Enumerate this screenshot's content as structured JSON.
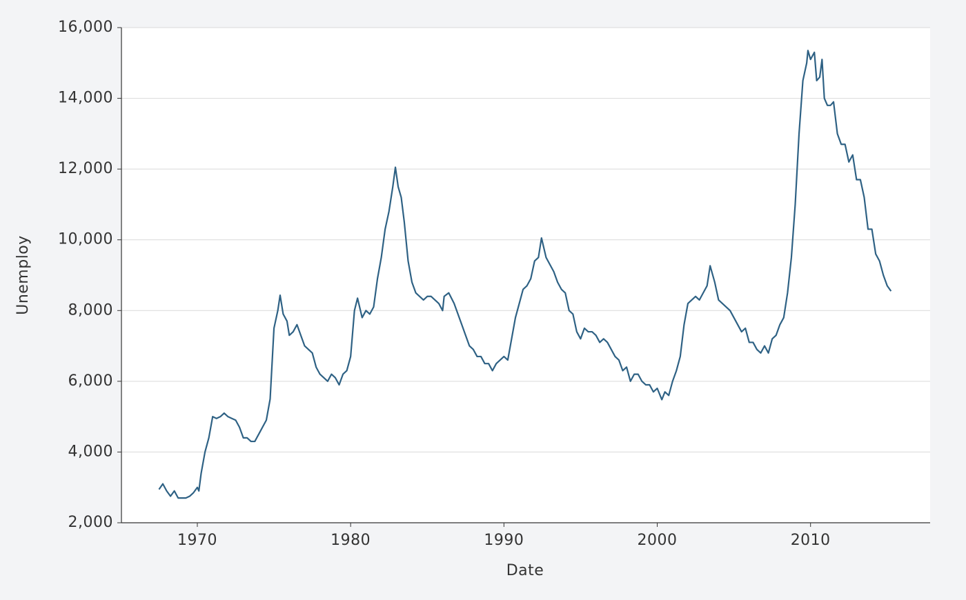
{
  "chart_data": {
    "type": "line",
    "x_label": "Date",
    "y_label": "Unemploy",
    "x": [
      1967.5,
      1967.75,
      1968.0,
      1968.25,
      1968.5,
      1968.75,
      1969.0,
      1969.25,
      1969.5,
      1969.75,
      1970.0,
      1970.1,
      1970.25,
      1970.5,
      1970.75,
      1971.0,
      1971.25,
      1971.5,
      1971.75,
      1972.0,
      1972.25,
      1972.5,
      1972.75,
      1973.0,
      1973.25,
      1973.5,
      1973.75,
      1974.0,
      1974.25,
      1974.5,
      1974.75,
      1975.0,
      1975.25,
      1975.4,
      1975.6,
      1975.85,
      1976.0,
      1976.25,
      1976.5,
      1976.75,
      1977.0,
      1977.25,
      1977.5,
      1977.75,
      1978.0,
      1978.25,
      1978.5,
      1978.75,
      1979.0,
      1979.25,
      1979.5,
      1979.75,
      1980.0,
      1980.25,
      1980.45,
      1980.75,
      1981.0,
      1981.25,
      1981.5,
      1981.75,
      1982.0,
      1982.25,
      1982.5,
      1982.75,
      1982.92,
      1983.1,
      1983.3,
      1983.5,
      1983.75,
      1984.0,
      1984.25,
      1984.5,
      1984.75,
      1985.0,
      1985.25,
      1985.5,
      1985.75,
      1986.0,
      1986.1,
      1986.4,
      1986.75,
      1987.0,
      1987.25,
      1987.5,
      1987.75,
      1988.0,
      1988.25,
      1988.5,
      1988.75,
      1989.0,
      1989.25,
      1989.5,
      1989.75,
      1990.0,
      1990.25,
      1990.5,
      1990.75,
      1991.0,
      1991.25,
      1991.5,
      1991.75,
      1992.0,
      1992.25,
      1992.45,
      1992.75,
      1993.0,
      1993.25,
      1993.5,
      1993.75,
      1994.0,
      1994.25,
      1994.5,
      1994.75,
      1995.0,
      1995.25,
      1995.5,
      1995.75,
      1996.0,
      1996.25,
      1996.5,
      1996.75,
      1997.0,
      1997.25,
      1997.5,
      1997.75,
      1998.0,
      1998.25,
      1998.5,
      1998.75,
      1999.0,
      1999.25,
      1999.5,
      1999.75,
      2000.0,
      2000.3,
      2000.5,
      2000.75,
      2001.0,
      2001.25,
      2001.5,
      2001.75,
      2002.0,
      2002.25,
      2002.5,
      2002.75,
      2003.0,
      2003.25,
      2003.45,
      2003.75,
      2004.0,
      2004.25,
      2004.5,
      2004.75,
      2005.0,
      2005.25,
      2005.5,
      2005.75,
      2006.0,
      2006.25,
      2006.5,
      2006.75,
      2007.0,
      2007.25,
      2007.5,
      2007.75,
      2008.0,
      2008.25,
      2008.5,
      2008.75,
      2009.0,
      2009.25,
      2009.5,
      2009.75,
      2009.83,
      2010.0,
      2010.25,
      2010.4,
      2010.6,
      2010.75,
      2010.9,
      2011.1,
      2011.3,
      2011.5,
      2011.75,
      2012.0,
      2012.25,
      2012.5,
      2012.75,
      2013.0,
      2013.25,
      2013.5,
      2013.75,
      2014.0,
      2014.25,
      2014.5,
      2014.75,
      2015.0,
      2015.25
    ],
    "series": [
      {
        "name": "unemploy",
        "color": "#2e6184",
        "values": [
          2944,
          3100,
          2900,
          2750,
          2900,
          2700,
          2700,
          2700,
          2750,
          2850,
          3000,
          2900,
          3400,
          4000,
          4400,
          5000,
          4950,
          5000,
          5100,
          5000,
          4950,
          4900,
          4700,
          4400,
          4400,
          4300,
          4300,
          4500,
          4700,
          4900,
          5500,
          7500,
          8000,
          8433,
          7900,
          7700,
          7300,
          7400,
          7600,
          7300,
          7000,
          6900,
          6800,
          6400,
          6200,
          6100,
          6000,
          6200,
          6100,
          5900,
          6200,
          6300,
          6700,
          8000,
          8350,
          7800,
          8000,
          7900,
          8100,
          8900,
          9500,
          10300,
          10800,
          11500,
          12051,
          11500,
          11200,
          10500,
          9400,
          8800,
          8500,
          8400,
          8300,
          8400,
          8400,
          8300,
          8200,
          8000,
          8400,
          8500,
          8200,
          7900,
          7600,
          7300,
          7000,
          6900,
          6700,
          6700,
          6500,
          6500,
          6300,
          6500,
          6600,
          6700,
          6600,
          7200,
          7800,
          8200,
          8600,
          8700,
          8900,
          9400,
          9500,
          10052,
          9500,
          9300,
          9100,
          8800,
          8600,
          8500,
          8000,
          7900,
          7400,
          7200,
          7500,
          7400,
          7400,
          7300,
          7100,
          7200,
          7100,
          6900,
          6700,
          6600,
          6300,
          6400,
          6000,
          6200,
          6200,
          6000,
          5900,
          5900,
          5700,
          5800,
          5481,
          5700,
          5600,
          6000,
          6300,
          6700,
          7600,
          8200,
          8300,
          8400,
          8300,
          8500,
          8700,
          9266,
          8800,
          8300,
          8200,
          8100,
          8000,
          7800,
          7600,
          7400,
          7500,
          7100,
          7100,
          6900,
          6800,
          7000,
          6800,
          7200,
          7300,
          7600,
          7800,
          8500,
          9500,
          11000,
          13000,
          14500,
          15000,
          15352,
          15100,
          15300,
          14500,
          14600,
          15100,
          14000,
          13800,
          13800,
          13900,
          13000,
          12700,
          12700,
          12200,
          12400,
          11700,
          11700,
          11200,
          10300,
          10300,
          9600,
          9400,
          9000,
          8700,
          8549
        ]
      }
    ],
    "xlim": [
      1965.05,
      2017.8
    ],
    "xticks": [
      1970,
      1980,
      1990,
      2000,
      2010
    ],
    "ylim": [
      2000,
      16000
    ],
    "yticks": [
      {
        "value": 2000,
        "label": "2,000"
      },
      {
        "value": 4000,
        "label": "4,000"
      },
      {
        "value": 6000,
        "label": "6,000"
      },
      {
        "value": 8000,
        "label": "8,000"
      },
      {
        "value": 10000,
        "label": "10,000"
      },
      {
        "value": 12000,
        "label": "12,000"
      },
      {
        "value": 14000,
        "label": "14,000"
      },
      {
        "value": 16000,
        "label": "16,000"
      }
    ],
    "grid": true
  }
}
